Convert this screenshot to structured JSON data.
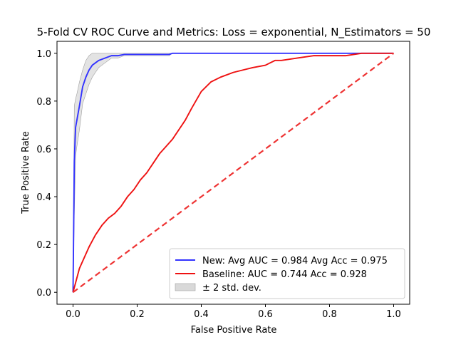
{
  "chart_data": {
    "type": "line",
    "title": "5-Fold CV ROC Curve and Metrics: Loss = exponential, N_Estimators = 50",
    "xlabel": "False Positive Rate",
    "ylabel": "True Positive Rate",
    "xlim": [
      -0.05,
      1.05
    ],
    "ylim": [
      -0.05,
      1.05
    ],
    "xticks": [
      "0.0",
      "0.2",
      "0.4",
      "0.6",
      "0.8",
      "1.0"
    ],
    "yticks": [
      "0.0",
      "0.2",
      "0.4",
      "0.6",
      "0.8",
      "1.0"
    ],
    "grid": false,
    "legend_position": "lower-right",
    "series": [
      {
        "name": "New: Avg AUC = 0.984 Avg Acc = 0.975",
        "color": "#3333ff",
        "style": "solid",
        "x": [
          0.0,
          0.004,
          0.008,
          0.012,
          0.02,
          0.03,
          0.04,
          0.05,
          0.06,
          0.07,
          0.08,
          0.1,
          0.12,
          0.14,
          0.16,
          0.2,
          0.3,
          0.31,
          0.4,
          0.6,
          0.8,
          1.0
        ],
        "y": [
          0.0,
          0.55,
          0.69,
          0.72,
          0.78,
          0.86,
          0.9,
          0.93,
          0.95,
          0.96,
          0.97,
          0.98,
          0.99,
          0.99,
          0.995,
          0.995,
          0.995,
          1.0,
          1.0,
          1.0,
          1.0,
          1.0
        ]
      },
      {
        "name": "Baseline: AUC = 0.744 Acc = 0.928",
        "color": "#ee1111",
        "style": "solid",
        "x": [
          0.0,
          0.01,
          0.02,
          0.03,
          0.05,
          0.07,
          0.09,
          0.11,
          0.13,
          0.15,
          0.17,
          0.19,
          0.21,
          0.23,
          0.25,
          0.27,
          0.29,
          0.31,
          0.33,
          0.35,
          0.37,
          0.4,
          0.43,
          0.46,
          0.5,
          0.53,
          0.56,
          0.6,
          0.63,
          0.65,
          0.7,
          0.75,
          0.8,
          0.85,
          0.9,
          0.95,
          1.0
        ],
        "y": [
          0.0,
          0.05,
          0.1,
          0.13,
          0.19,
          0.24,
          0.28,
          0.31,
          0.33,
          0.36,
          0.4,
          0.43,
          0.47,
          0.5,
          0.54,
          0.58,
          0.61,
          0.64,
          0.68,
          0.72,
          0.77,
          0.84,
          0.88,
          0.9,
          0.92,
          0.93,
          0.94,
          0.95,
          0.97,
          0.97,
          0.98,
          0.99,
          0.99,
          0.99,
          1.0,
          1.0,
          1.0
        ]
      },
      {
        "name": "",
        "color": "#ee3333",
        "style": "dashed",
        "x": [
          0.0,
          1.0
        ],
        "y": [
          0.0,
          1.0
        ]
      }
    ],
    "band": {
      "name": "± 2 std. dev.",
      "color": "#d9d9d9",
      "x": [
        0.0,
        0.004,
        0.008,
        0.012,
        0.02,
        0.03,
        0.04,
        0.05,
        0.06,
        0.07,
        0.08,
        0.1,
        0.12,
        0.14,
        0.16,
        0.2,
        0.3,
        0.31,
        1.0
      ],
      "upper": [
        0.0,
        0.78,
        0.81,
        0.83,
        0.88,
        0.93,
        0.97,
        0.99,
        1.0,
        1.0,
        1.0,
        1.0,
        1.0,
        1.0,
        1.0,
        1.0,
        1.0,
        1.0,
        1.0
      ],
      "lower": [
        0.0,
        0.32,
        0.57,
        0.61,
        0.68,
        0.79,
        0.83,
        0.87,
        0.9,
        0.92,
        0.94,
        0.96,
        0.98,
        0.98,
        0.99,
        0.99,
        0.99,
        1.0,
        1.0
      ]
    }
  }
}
